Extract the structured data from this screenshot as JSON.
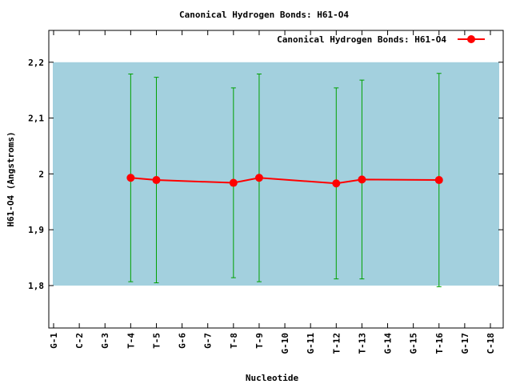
{
  "chart_data": {
    "type": "line",
    "title": "Canonical Hydrogen Bonds: H61-O4",
    "x_label": "Nucleotide",
    "y_label": "H61-O4 (Angstroms)",
    "categories": [
      "G-1",
      "C-2",
      "G-3",
      "T-4",
      "T-5",
      "G-6",
      "G-7",
      "T-8",
      "T-9",
      "G-10",
      "G-11",
      "T-12",
      "T-13",
      "G-14",
      "G-15",
      "T-16",
      "G-17",
      "C-18"
    ],
    "ylim": [
      1.724,
      2.257
    ],
    "yticks": [
      {
        "value": 1.8,
        "label": "1,8"
      },
      {
        "value": 1.9,
        "label": "1,9"
      },
      2,
      {
        "value": 2.1,
        "label": "2,1"
      },
      {
        "value": 2.2,
        "label": "2,2"
      }
    ],
    "band": [
      1.8,
      2.2
    ],
    "band_color": "#a3d0de",
    "legend": "top-right",
    "series": [
      {
        "name": "Canonical Hydrogen Bonds: H61-O4",
        "color": "#ff0000",
        "error_color": "#00a000",
        "x": [
          "T-4",
          "T-5",
          "T-8",
          "T-9",
          "T-12",
          "T-13",
          "T-16"
        ],
        "values": [
          1.993,
          1.989,
          1.984,
          1.993,
          1.983,
          1.99,
          1.989
        ],
        "errors": [
          0.186,
          0.184,
          0.17,
          0.186,
          0.171,
          0.178,
          0.191
        ]
      }
    ]
  }
}
